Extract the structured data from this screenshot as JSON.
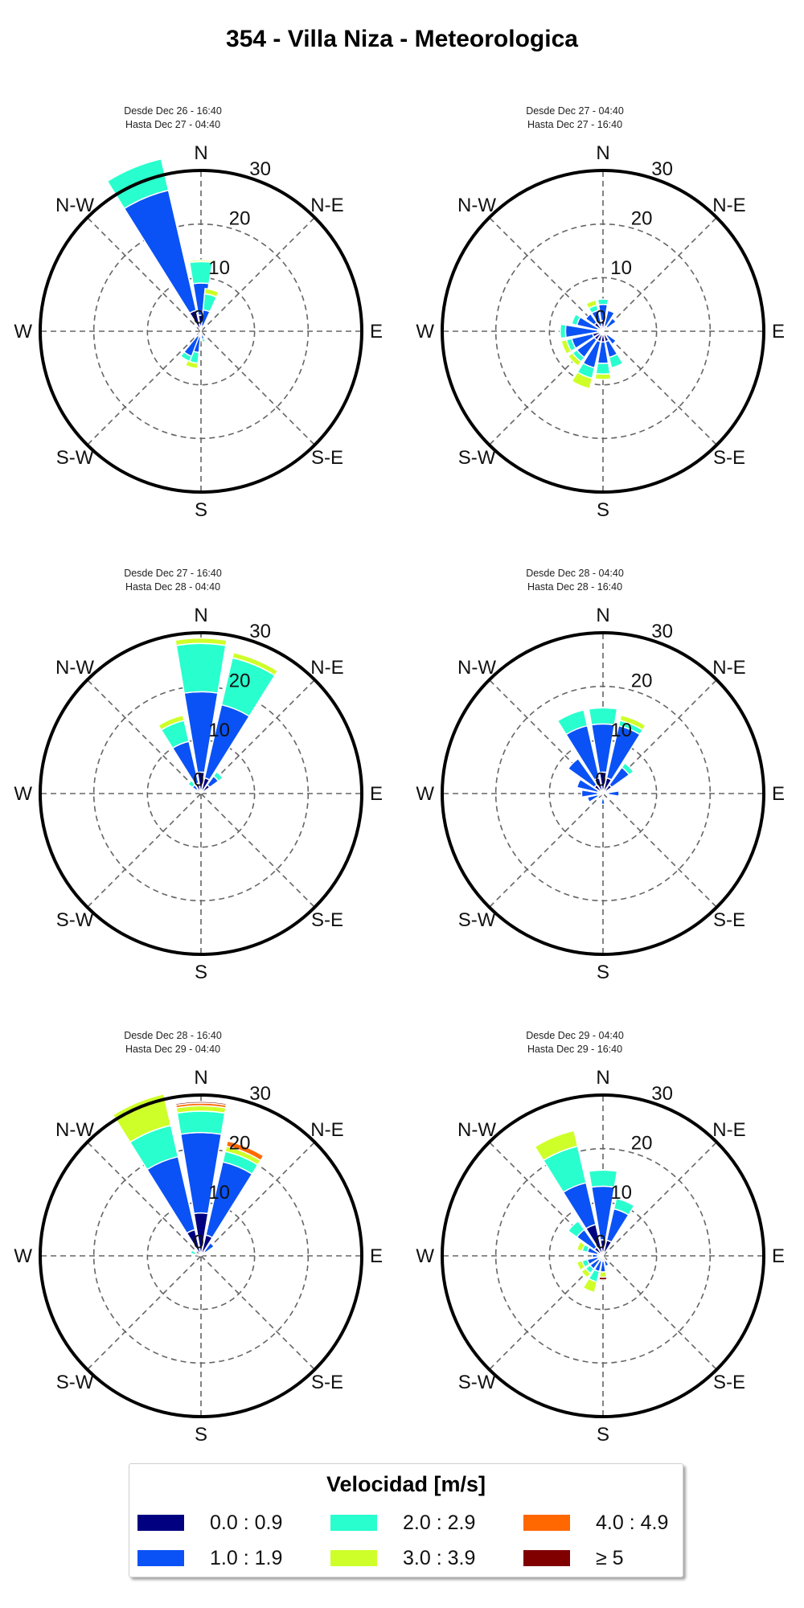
{
  "title": "354 - Villa Niza - Meteorologica",
  "direction_labels": [
    "N",
    "N-E",
    "E",
    "S-E",
    "S",
    "S-W",
    "W",
    "N-W"
  ],
  "legend": {
    "title": "Velocidad [m/s]",
    "items": [
      {
        "label": "0.0 : 0.9",
        "color": "#000080"
      },
      {
        "label": "1.0 : 1.9",
        "color": "#0a52f5"
      },
      {
        "label": "2.0 : 2.9",
        "color": "#29ffce"
      },
      {
        "label": "3.0 : 3.9",
        "color": "#ceff29"
      },
      {
        "label": "4.0 : 4.9",
        "color": "#ff6800"
      },
      {
        "label": "≥  5",
        "color": "#800000"
      }
    ]
  },
  "chart_data": [
    {
      "type": "windrose",
      "header_from": "Desde Dec 26 - 16:40",
      "header_to": "Hasta Dec 27 - 04:40",
      "rmax": 30,
      "rticks": [
        0,
        10,
        20,
        30
      ],
      "rtick_labels": [
        "0",
        "10",
        "20",
        "30"
      ],
      "sectors": [
        {
          "dir": 0,
          "values": [
            3,
            6,
            4,
            0.3,
            0,
            0
          ]
        },
        {
          "dir": 22.5,
          "values": [
            0,
            0,
            0,
            0,
            0,
            0
          ]
        },
        {
          "dir": 337.5,
          "values": [
            4,
            23,
            6,
            0,
            0,
            0
          ]
        },
        {
          "dir": 7.5,
          "values": [
            1,
            0,
            0,
            0,
            0,
            0
          ]
        },
        {
          "dir": 15,
          "values": [
            1,
            3,
            3,
            1,
            0,
            0
          ]
        },
        {
          "dir": 195,
          "values": [
            1,
            3,
            2,
            1,
            0,
            0
          ]
        },
        {
          "dir": 210,
          "values": [
            1,
            4,
            1,
            0,
            0,
            0
          ]
        },
        {
          "dir": 165,
          "values": [
            0.5,
            1,
            0.5,
            0,
            0,
            0
          ]
        }
      ]
    },
    {
      "type": "windrose",
      "header_from": "Desde Dec 27 - 04:40",
      "header_to": "Hasta Dec 27 - 16:40",
      "rmax": 30,
      "rticks": [
        0,
        10,
        20,
        30
      ],
      "rtick_labels": [
        "0",
        "10",
        "20",
        "30"
      ],
      "sectors": [
        {
          "dir": 0,
          "values": [
            2,
            3,
            1,
            0,
            0,
            0
          ]
        },
        {
          "dir": 337.5,
          "values": [
            1,
            3,
            1,
            1,
            0,
            0
          ]
        },
        {
          "dir": 315,
          "values": [
            2,
            2,
            0,
            0,
            0,
            0
          ]
        },
        {
          "dir": 292.5,
          "values": [
            1,
            4,
            1,
            0,
            0,
            0
          ]
        },
        {
          "dir": 270,
          "values": [
            1,
            6,
            1,
            0,
            0,
            0
          ]
        },
        {
          "dir": 247.5,
          "values": [
            2,
            4,
            1,
            1,
            0,
            0
          ]
        },
        {
          "dir": 225,
          "values": [
            2,
            4,
            1,
            1,
            0,
            0
          ]
        },
        {
          "dir": 202.5,
          "values": [
            2,
            5,
            2,
            2,
            0,
            0
          ]
        },
        {
          "dir": 180,
          "values": [
            2,
            4,
            2,
            1,
            0,
            0
          ]
        },
        {
          "dir": 157.5,
          "values": [
            2,
            3,
            2,
            0,
            0,
            0
          ]
        },
        {
          "dir": 135,
          "values": [
            1,
            2,
            0,
            0,
            0,
            0
          ]
        },
        {
          "dir": 45,
          "values": [
            1,
            2,
            0,
            0,
            0,
            0
          ]
        },
        {
          "dir": 22.5,
          "values": [
            1,
            3,
            0,
            0,
            0,
            0
          ]
        }
      ]
    },
    {
      "type": "windrose",
      "header_from": "Desde Dec 27 - 16:40",
      "header_to": "Hasta Dec 28 - 04:40",
      "rmax": 30,
      "rticks": [
        0,
        10,
        20,
        30
      ],
      "rtick_labels": [
        "0",
        "10",
        "20",
        "30"
      ],
      "sectors": [
        {
          "dir": 0,
          "values": [
            4,
            15,
            9,
            1,
            0,
            0
          ]
        },
        {
          "dir": 22.5,
          "values": [
            3,
            14,
            9,
            1,
            0,
            0
          ]
        },
        {
          "dir": 337.5,
          "values": [
            2,
            8,
            4,
            1,
            0,
            0
          ]
        },
        {
          "dir": 45,
          "values": [
            2,
            2,
            1,
            0,
            0,
            0
          ]
        },
        {
          "dir": 315,
          "values": [
            1,
            1,
            1,
            0,
            0,
            0
          ]
        }
      ]
    },
    {
      "type": "windrose",
      "header_from": "Desde Dec 28 - 04:40",
      "header_to": "Hasta Dec 28 - 16:40",
      "rmax": 30,
      "rticks": [
        0,
        10,
        20,
        30
      ],
      "rtick_labels": [
        "0",
        "10",
        "20",
        "30"
      ],
      "sectors": [
        {
          "dir": 0,
          "values": [
            4,
            9,
            3,
            0,
            0,
            0
          ]
        },
        {
          "dir": 337.5,
          "values": [
            3,
            10,
            3,
            0,
            0,
            0
          ]
        },
        {
          "dir": 22.5,
          "values": [
            3,
            10,
            1,
            1,
            0,
            0
          ]
        },
        {
          "dir": 315,
          "values": [
            2,
            6,
            0,
            0,
            0,
            0
          ]
        },
        {
          "dir": 45,
          "values": [
            2,
            4,
            1,
            0,
            0,
            0
          ]
        },
        {
          "dir": 292.5,
          "values": [
            1,
            4,
            0,
            0,
            0,
            0
          ]
        },
        {
          "dir": 270,
          "values": [
            1,
            3,
            0,
            0,
            0,
            0
          ]
        },
        {
          "dir": 247.5,
          "values": [
            1,
            2,
            0,
            0,
            0,
            0
          ]
        },
        {
          "dir": 90,
          "values": [
            1,
            2,
            0,
            0,
            0,
            0
          ]
        },
        {
          "dir": 180,
          "values": [
            1,
            1,
            0,
            0,
            0,
            0
          ]
        }
      ]
    },
    {
      "type": "windrose",
      "header_from": "Desde Dec 28 - 16:40",
      "header_to": "Hasta Dec 29 - 04:40",
      "rmax": 30,
      "rticks": [
        0,
        10,
        20,
        30
      ],
      "rtick_labels": [
        "0",
        "10",
        "20",
        "30"
      ],
      "sectors": [
        {
          "dir": 0,
          "values": [
            8,
            15,
            4,
            1,
            0.5,
            0.3
          ]
        },
        {
          "dir": 22.5,
          "values": [
            4,
            14,
            2,
            1,
            1,
            0
          ]
        },
        {
          "dir": 337.5,
          "values": [
            5,
            14,
            6,
            6,
            0,
            0
          ]
        },
        {
          "dir": 45,
          "values": [
            1,
            2,
            0,
            0,
            0,
            0
          ]
        },
        {
          "dir": 292.5,
          "values": [
            1,
            0,
            1,
            0,
            0,
            0
          ]
        }
      ]
    },
    {
      "type": "windrose",
      "header_from": "Desde Dec 29 - 04:40",
      "header_to": "Hasta Dec 29 - 16:40",
      "rmax": 30,
      "rticks": [
        0,
        10,
        20,
        30
      ],
      "rtick_labels": [
        "0",
        "10",
        "20",
        "30"
      ],
      "sectors": [
        {
          "dir": 0,
          "values": [
            3,
            10,
            3,
            0,
            0,
            0
          ]
        },
        {
          "dir": 22.5,
          "values": [
            3,
            6,
            2,
            0,
            0,
            0
          ]
        },
        {
          "dir": 337.5,
          "values": [
            6,
            8,
            7,
            3,
            0,
            0
          ]
        },
        {
          "dir": 315,
          "values": [
            2,
            4,
            2,
            0,
            0,
            0
          ]
        },
        {
          "dir": 292.5,
          "values": [
            1,
            2,
            1,
            1,
            0,
            0
          ]
        },
        {
          "dir": 270,
          "values": [
            1,
            1,
            0,
            0,
            0,
            0
          ]
        },
        {
          "dir": 247.5,
          "values": [
            1,
            2,
            1,
            1,
            0,
            0
          ]
        },
        {
          "dir": 225,
          "values": [
            1,
            2,
            1,
            1,
            0,
            0
          ]
        },
        {
          "dir": 202.5,
          "values": [
            1,
            2,
            2,
            2,
            0,
            0
          ]
        },
        {
          "dir": 180,
          "values": [
            1,
            2,
            0,
            1,
            0,
            0.5
          ]
        },
        {
          "dir": 157.5,
          "values": [
            1,
            1,
            0,
            0,
            0,
            0
          ]
        }
      ]
    }
  ]
}
